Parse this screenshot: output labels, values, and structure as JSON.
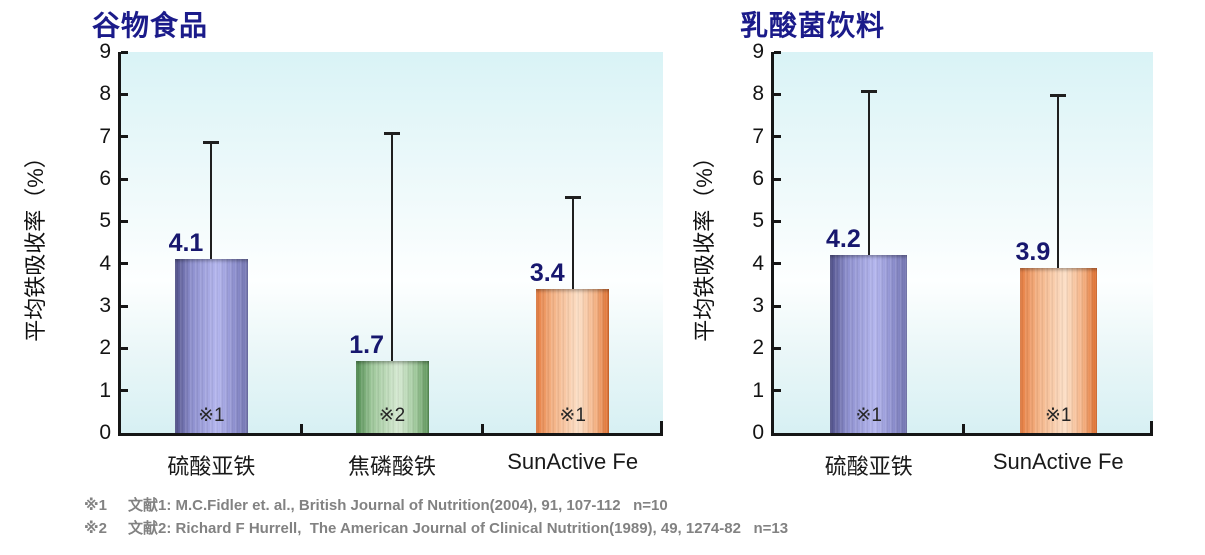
{
  "chart_data": [
    {
      "type": "bar",
      "title": "谷物食品",
      "ylabel": "平均铁吸收率（%）",
      "xlabel": "",
      "ylim": [
        0,
        9
      ],
      "yticks": [
        0,
        1,
        2,
        3,
        4,
        5,
        6,
        7,
        8,
        9
      ],
      "grid": false,
      "legend": false,
      "categories": [
        "硫酸亚铁",
        "焦磷酸铁",
        "SunActive Fe"
      ],
      "values": [
        4.1,
        1.7,
        3.4
      ],
      "value_labels": [
        "4.1",
        "1.7",
        "3.4"
      ],
      "error_bar_tops": [
        6.9,
        7.1,
        5.6
      ],
      "bar_notes": [
        "※1",
        "※2",
        "※1"
      ],
      "bar_colors": [
        "blue",
        "green",
        "orange"
      ]
    },
    {
      "type": "bar",
      "title": "乳酸菌饮料",
      "ylabel": "平均铁吸收率（%）",
      "xlabel": "",
      "ylim": [
        0,
        9
      ],
      "yticks": [
        0,
        1,
        2,
        3,
        4,
        5,
        6,
        7,
        8,
        9
      ],
      "grid": false,
      "legend": false,
      "categories": [
        "硫酸亚铁",
        "SunActive Fe"
      ],
      "values": [
        4.2,
        3.9
      ],
      "value_labels": [
        "4.2",
        "3.9"
      ],
      "error_bar_tops": [
        8.1,
        8.0
      ],
      "bar_notes": [
        "※1",
        "※1"
      ],
      "bar_colors": [
        "blue",
        "orange"
      ]
    }
  ],
  "footnotes": [
    {
      "mark": "※1",
      "text": "文献1: M.C.Fidler et. al., British Journal of Nutrition(2004), 91, 107-112   n=10"
    },
    {
      "mark": "※2",
      "text": "文献2: Richard F Hurrell,  The American Journal of Clinical Nutrition(1989), 49, 1274-82   n=13"
    }
  ],
  "palette": {
    "title_color": "#1b1b8a",
    "value_label_color": "#17176e",
    "axis_color": "#161616",
    "tick_label_color": "#141414",
    "category_label_color": "#1a1a1a",
    "note_color": "#262626",
    "footnote_color": "#828282",
    "error_bar_color": "#1f1f1f",
    "plot_bg_top": "#d9f3f6",
    "plot_bg_mid": "#fdffff",
    "plot_bg_bottom": "#d7f0f3",
    "bar_gradients": {
      "blue": {
        "edge_left": "#50508a",
        "mid": "#8d8fce",
        "light": "#b4b6ee",
        "edge_right": "#7375b0"
      },
      "green": {
        "edge_left": "#4e8a4f",
        "mid": "#9fc89b",
        "light": "#d6e9d2",
        "edge_right": "#5a9257"
      },
      "orange": {
        "edge_left": "#e67b3e",
        "mid": "#f4b183",
        "light": "#fcdfc6",
        "edge_right": "#dd6c2c"
      }
    }
  }
}
